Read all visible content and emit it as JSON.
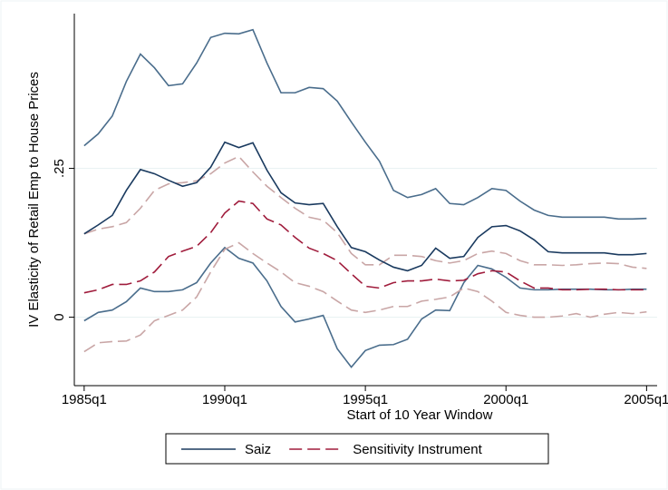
{
  "chart_data": {
    "type": "line",
    "ylabel": "IV Elasticity of Retail Emp to House Prices",
    "xlabel": "Start of 10 Year Window",
    "x": [
      100,
      102,
      104,
      106,
      108,
      110,
      112,
      114,
      116,
      118,
      120,
      122,
      124,
      126,
      128,
      130,
      132,
      134,
      136,
      138,
      140,
      142,
      144,
      146,
      148,
      150,
      152,
      154,
      156,
      158,
      160,
      162,
      164,
      166,
      168,
      170,
      172,
      174,
      176,
      178,
      180
    ],
    "xlim": [
      98.6,
      181.5
    ],
    "xticks": [
      {
        "value": 100,
        "label": "1985q1"
      },
      {
        "value": 120,
        "label": "1990q1"
      },
      {
        "value": 140,
        "label": "1995q1"
      },
      {
        "value": 160,
        "label": "2000q1"
      },
      {
        "value": 180,
        "label": "2005q1"
      }
    ],
    "ylim": [
      -0.115,
      0.51
    ],
    "yticks": [
      0,
      {
        "value": 0.25,
        "label": ".25"
      }
    ],
    "grid": true,
    "legend": "bottom",
    "series": [
      {
        "color": "#4a6d8c",
        "values": [
          0.288,
          0.308,
          0.338,
          0.396,
          0.442,
          0.419,
          0.389,
          0.392,
          0.427,
          0.47,
          0.477,
          0.476,
          0.483,
          0.427,
          0.377,
          0.377,
          0.386,
          0.384,
          0.363,
          0.328,
          0.294,
          0.262,
          0.213,
          0.201,
          0.206,
          0.216,
          0.191,
          0.189,
          0.201,
          0.216,
          0.213,
          0.195,
          0.18,
          0.171,
          0.168,
          0.168,
          0.168,
          0.168,
          0.165,
          0.165,
          0.166
        ]
      },
      {
        "color": "#4a6d8c",
        "values": [
          -0.006,
          0.008,
          0.012,
          0.026,
          0.049,
          0.043,
          0.043,
          0.046,
          0.058,
          0.091,
          0.117,
          0.099,
          0.091,
          0.061,
          0.018,
          -0.008,
          -0.003,
          0.003,
          -0.053,
          -0.084,
          -0.056,
          -0.047,
          -0.046,
          -0.037,
          -0.003,
          0.012,
          0.011,
          0.058,
          0.087,
          0.081,
          0.067,
          0.049,
          0.046,
          0.046,
          0.047,
          0.047,
          0.047,
          0.046,
          0.046,
          0.047,
          0.047
        ]
      },
      {
        "color": "#c9a6a6",
        "dash": true,
        "values": [
          0.14,
          0.148,
          0.152,
          0.159,
          0.183,
          0.213,
          0.224,
          0.226,
          0.229,
          0.241,
          0.259,
          0.27,
          0.244,
          0.22,
          0.201,
          0.183,
          0.168,
          0.163,
          0.142,
          0.107,
          0.088,
          0.088,
          0.104,
          0.104,
          0.102,
          0.095,
          0.091,
          0.095,
          0.107,
          0.111,
          0.107,
          0.095,
          0.088,
          0.088,
          0.087,
          0.088,
          0.09,
          0.091,
          0.09,
          0.084,
          0.082
        ]
      },
      {
        "color": "#c9a6a6",
        "dash": true,
        "values": [
          -0.058,
          -0.043,
          -0.041,
          -0.04,
          -0.03,
          -0.006,
          0.003,
          0.012,
          0.034,
          0.076,
          0.114,
          0.125,
          0.107,
          0.091,
          0.076,
          0.058,
          0.052,
          0.043,
          0.027,
          0.012,
          0.008,
          0.012,
          0.018,
          0.018,
          0.027,
          0.03,
          0.034,
          0.049,
          0.043,
          0.027,
          0.008,
          0.003,
          0,
          0,
          0.002,
          0.006,
          0,
          0.005,
          0.008,
          0.006,
          0.009
        ]
      },
      {
        "name": "Saiz",
        "color": "#1a3a5f",
        "values": [
          0.14,
          0.155,
          0.171,
          0.213,
          0.248,
          0.241,
          0.23,
          0.22,
          0.226,
          0.252,
          0.294,
          0.285,
          0.293,
          0.247,
          0.209,
          0.192,
          0.189,
          0.191,
          0.152,
          0.117,
          0.11,
          0.096,
          0.084,
          0.078,
          0.087,
          0.116,
          0.099,
          0.102,
          0.134,
          0.152,
          0.154,
          0.145,
          0.13,
          0.11,
          0.108,
          0.108,
          0.108,
          0.108,
          0.105,
          0.105,
          0.107
        ]
      },
      {
        "name": "Sensitivity Instrument",
        "color": "#a01c3c",
        "dash": true,
        "values": [
          0.041,
          0.046,
          0.055,
          0.055,
          0.061,
          0.076,
          0.102,
          0.111,
          0.119,
          0.142,
          0.175,
          0.195,
          0.191,
          0.165,
          0.155,
          0.134,
          0.116,
          0.107,
          0.095,
          0.073,
          0.052,
          0.049,
          0.058,
          0.061,
          0.061,
          0.064,
          0.061,
          0.062,
          0.073,
          0.078,
          0.076,
          0.061,
          0.049,
          0.049,
          0.046,
          0.046,
          0.047,
          0.047,
          0.046,
          0.046,
          0.046
        ]
      }
    ]
  }
}
